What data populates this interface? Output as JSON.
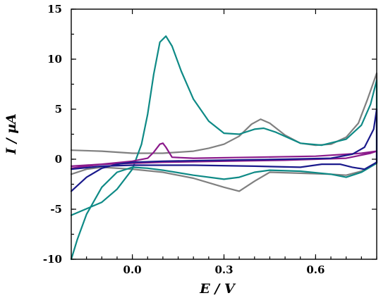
{
  "chart_data": {
    "type": "line",
    "title": "",
    "xlabel": "E / V",
    "ylabel": "I / µA",
    "xlim": [
      -0.2,
      0.8
    ],
    "ylim": [
      -10,
      15
    ],
    "xticks": [
      0.0,
      0.3,
      0.6
    ],
    "xtick_labels": [
      "0.0",
      "0.3",
      "0.6"
    ],
    "yticks": [
      -10,
      -5,
      0,
      5,
      10,
      15
    ],
    "ytick_labels": [
      "-10",
      "-5",
      "0",
      "5",
      "10",
      "15"
    ],
    "grid": false,
    "legend": "none",
    "series": [
      {
        "color": "#808080",
        "points": [
          [
            -0.2,
            0.9
          ],
          [
            -0.1,
            0.8
          ],
          [
            0.0,
            0.6
          ],
          [
            0.1,
            0.6
          ],
          [
            0.2,
            0.8
          ],
          [
            0.25,
            1.1
          ],
          [
            0.3,
            1.5
          ],
          [
            0.35,
            2.3
          ],
          [
            0.39,
            3.5
          ],
          [
            0.42,
            4.0
          ],
          [
            0.45,
            3.6
          ],
          [
            0.5,
            2.4
          ],
          [
            0.55,
            1.6
          ],
          [
            0.6,
            1.4
          ],
          [
            0.65,
            1.5
          ],
          [
            0.7,
            2.2
          ],
          [
            0.74,
            3.6
          ],
          [
            0.77,
            6.0
          ],
          [
            0.8,
            8.6
          ],
          [
            0.8,
            -0.4
          ],
          [
            0.75,
            -1.2
          ],
          [
            0.7,
            -1.6
          ],
          [
            0.65,
            -1.5
          ],
          [
            0.55,
            -1.4
          ],
          [
            0.45,
            -1.3
          ],
          [
            0.4,
            -2.2
          ],
          [
            0.35,
            -3.2
          ],
          [
            0.3,
            -2.8
          ],
          [
            0.2,
            -1.9
          ],
          [
            0.1,
            -1.3
          ],
          [
            0.0,
            -1.0
          ],
          [
            -0.1,
            -0.8
          ],
          [
            -0.15,
            -1.0
          ],
          [
            -0.2,
            -1.5
          ]
        ]
      },
      {
        "color": "#0e8a86",
        "points": [
          [
            -0.2,
            -5.6
          ],
          [
            -0.1,
            -4.3
          ],
          [
            -0.05,
            -3.0
          ],
          [
            0.0,
            -1.0
          ],
          [
            0.03,
            1.5
          ],
          [
            0.05,
            4.5
          ],
          [
            0.07,
            8.5
          ],
          [
            0.09,
            11.7
          ],
          [
            0.11,
            12.3
          ],
          [
            0.13,
            11.3
          ],
          [
            0.16,
            8.8
          ],
          [
            0.2,
            6.0
          ],
          [
            0.25,
            3.8
          ],
          [
            0.3,
            2.6
          ],
          [
            0.35,
            2.5
          ],
          [
            0.4,
            3.0
          ],
          [
            0.43,
            3.1
          ],
          [
            0.47,
            2.7
          ],
          [
            0.55,
            1.6
          ],
          [
            0.62,
            1.4
          ],
          [
            0.7,
            2.0
          ],
          [
            0.75,
            3.4
          ],
          [
            0.78,
            5.5
          ],
          [
            0.8,
            7.9
          ],
          [
            0.8,
            -0.4
          ],
          [
            0.75,
            -1.3
          ],
          [
            0.7,
            -1.8
          ],
          [
            0.65,
            -1.5
          ],
          [
            0.55,
            -1.2
          ],
          [
            0.45,
            -1.1
          ],
          [
            0.4,
            -1.3
          ],
          [
            0.35,
            -1.8
          ],
          [
            0.3,
            -2.0
          ],
          [
            0.2,
            -1.6
          ],
          [
            0.1,
            -1.1
          ],
          [
            0.05,
            -0.9
          ],
          [
            0.0,
            -0.8
          ],
          [
            -0.05,
            -1.3
          ],
          [
            -0.1,
            -2.8
          ],
          [
            -0.15,
            -5.5
          ],
          [
            -0.18,
            -8.0
          ],
          [
            -0.2,
            -10.0
          ]
        ]
      },
      {
        "color": "#8b1a8b",
        "points": [
          [
            -0.2,
            -0.9
          ],
          [
            -0.1,
            -0.5
          ],
          [
            0.0,
            -0.2
          ],
          [
            0.05,
            0.1
          ],
          [
            0.07,
            0.7
          ],
          [
            0.09,
            1.5
          ],
          [
            0.1,
            1.6
          ],
          [
            0.11,
            1.2
          ],
          [
            0.13,
            0.2
          ],
          [
            0.2,
            0.1
          ],
          [
            0.4,
            0.2
          ],
          [
            0.6,
            0.3
          ],
          [
            0.75,
            0.6
          ],
          [
            0.8,
            0.8
          ],
          [
            0.78,
            0.6
          ],
          [
            0.7,
            0.1
          ],
          [
            0.5,
            -0.1
          ],
          [
            0.3,
            -0.2
          ],
          [
            0.1,
            -0.3
          ],
          [
            -0.1,
            -0.5
          ],
          [
            -0.2,
            -0.7
          ]
        ]
      },
      {
        "color": "#1a1a8c",
        "points": [
          [
            -0.2,
            -3.2
          ],
          [
            -0.15,
            -1.8
          ],
          [
            -0.1,
            -0.9
          ],
          [
            -0.05,
            -0.5
          ],
          [
            0.0,
            -0.3
          ],
          [
            0.1,
            -0.2
          ],
          [
            0.3,
            -0.1
          ],
          [
            0.5,
            0.0
          ],
          [
            0.65,
            0.1
          ],
          [
            0.72,
            0.5
          ],
          [
            0.76,
            1.2
          ],
          [
            0.79,
            3.0
          ],
          [
            0.8,
            5.0
          ],
          [
            0.8,
            -0.3
          ],
          [
            0.76,
            -1.0
          ],
          [
            0.72,
            -0.8
          ],
          [
            0.68,
            -0.5
          ],
          [
            0.62,
            -0.5
          ],
          [
            0.55,
            -0.8
          ],
          [
            0.4,
            -0.7
          ],
          [
            0.2,
            -0.6
          ],
          [
            0.0,
            -0.6
          ],
          [
            -0.1,
            -0.7
          ],
          [
            -0.2,
            -1.0
          ]
        ]
      }
    ]
  }
}
